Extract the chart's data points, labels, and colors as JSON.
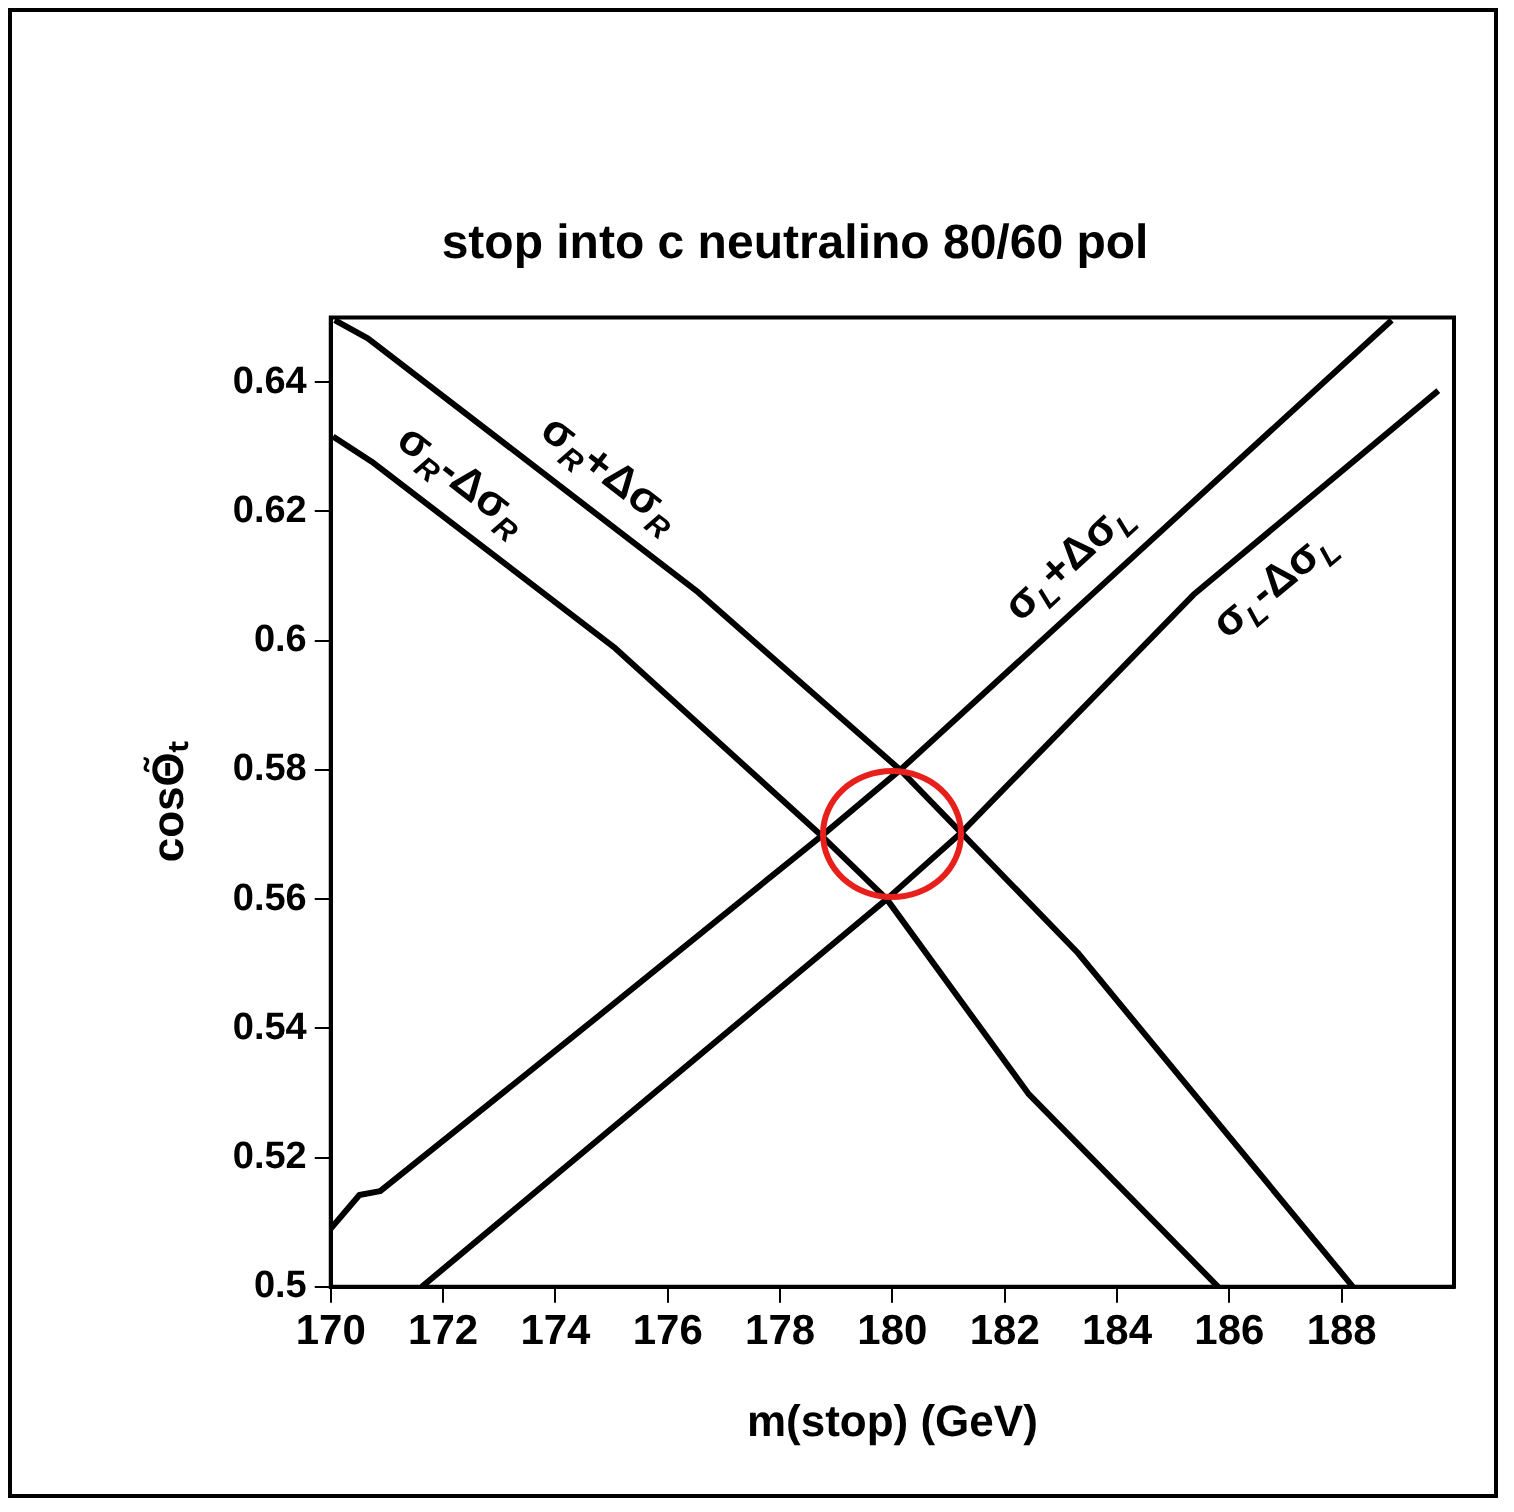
{
  "chart_data": {
    "type": "line",
    "title": "stop into c neutralino 80/60 pol",
    "xlabel": "m(stop) (GeV)",
    "ylabel": "cosΘ̃ₜ",
    "xlim": [
      170,
      190
    ],
    "xticks": [
      170,
      172,
      174,
      176,
      178,
      180,
      182,
      184,
      186,
      188
    ],
    "ylim": [
      0.5,
      0.65
    ],
    "yticks": [
      0.5,
      0.52,
      0.54,
      0.56,
      0.58,
      0.6,
      0.62,
      0.64
    ],
    "legend": false,
    "marker": "none",
    "line_style": "solid",
    "series": [
      {
        "color": "#000000",
        "x": [
          170.07,
          170.66,
          176.54,
          180.14,
          183.3,
          188.2
        ],
        "values": [
          0.6496,
          0.6468,
          0.6075,
          0.58,
          0.5517,
          0.5
        ]
      },
      {
        "color": "#000000",
        "x": [
          170.04,
          170.73,
          175.07,
          178.74,
          179.9,
          182.42,
          185.8
        ],
        "values": [
          0.6316,
          0.6277,
          0.5988,
          0.5698,
          0.56,
          0.5299,
          0.5
        ]
      },
      {
        "color": "#000000",
        "x": [
          170,
          170.51,
          170.88,
          174.34,
          178.74,
          180.14,
          188.89
        ],
        "values": [
          0.509,
          0.5142,
          0.5148,
          0.5389,
          0.5698,
          0.58,
          0.6496
        ]
      },
      {
        "color": "#000000",
        "x": [
          171.62,
          179.9,
          181.24,
          185.36,
          189.72
        ],
        "values": [
          0.5,
          0.56,
          0.5704,
          0.6071,
          0.6387
        ]
      }
    ],
    "annotations": [
      "σ$_{R}$+Δσ$_{R}$",
      "σ$_{R}$-Δσ$_{R}$",
      "σ$_{L}$+Δσ$_{L}$",
      "σ$_{L}$-Δσ$_{L}$"
    ]
  }
}
